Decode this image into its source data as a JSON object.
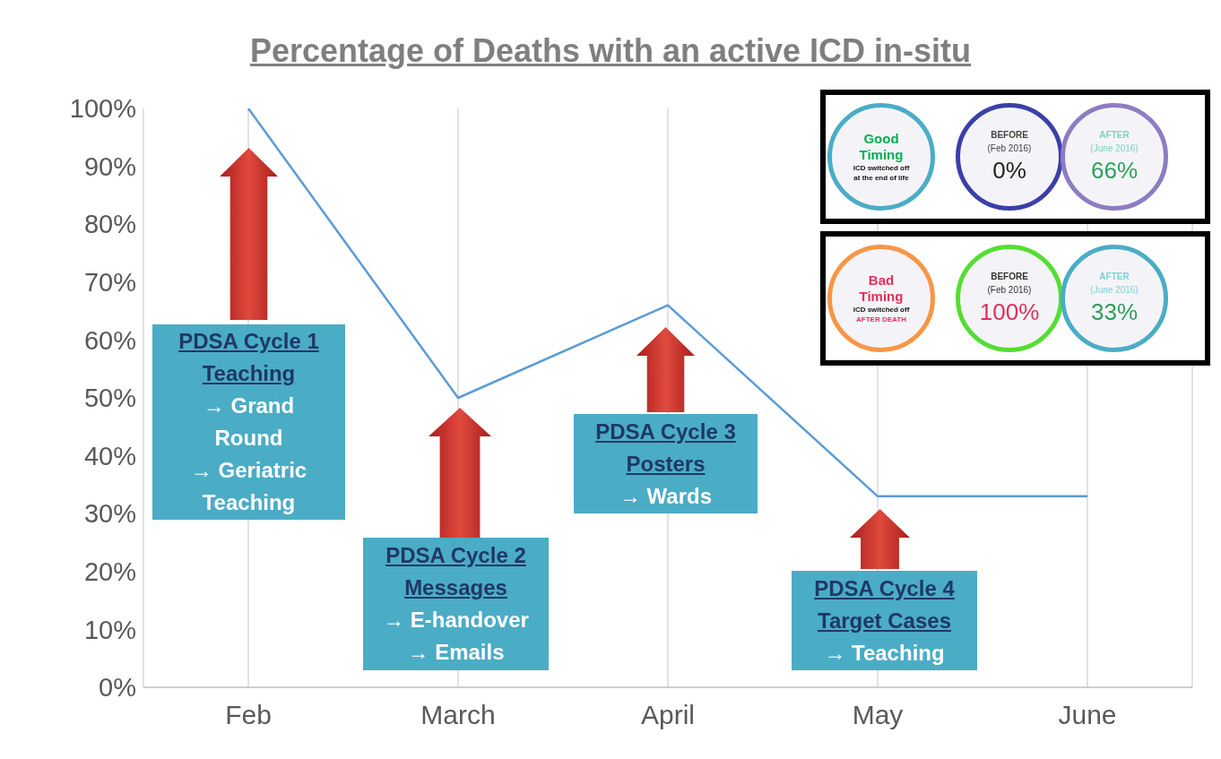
{
  "chart_data": {
    "type": "line",
    "title": "Percentage of Deaths with an active ICD in-situ",
    "categories": [
      "Feb",
      "March",
      "April",
      "May",
      "June"
    ],
    "series": [
      {
        "color": "#5b9bd5",
        "values": [
          100,
          50,
          66,
          33,
          33
        ]
      }
    ],
    "ylim": [
      0,
      100
    ],
    "yticks": [
      {
        "value": 0,
        "label": "0%"
      },
      {
        "value": 10,
        "label": "10%"
      },
      {
        "value": 20,
        "label": "20%"
      },
      {
        "value": 30,
        "label": "30%"
      },
      {
        "value": 40,
        "label": "40%"
      },
      {
        "value": 50,
        "label": "50%"
      },
      {
        "value": 60,
        "label": "60%"
      },
      {
        "value": 70,
        "label": "70%"
      },
      {
        "value": 80,
        "label": "80%"
      },
      {
        "value": 90,
        "label": "90%"
      },
      {
        "value": 100,
        "label": "100%"
      }
    ],
    "grid": "x",
    "marker": "none",
    "line_style": "solid",
    "annotations": [
      "PDSA Cycle 1\nTeaching\n→ Grand\nRound\n→ Geriatric\nTeaching",
      "PDSA Cycle 2\nMessages\n→ E-handover\n→ Emails",
      "PDSA Cycle 3\nPosters\n→ Wards",
      "PDSA Cycle 4\nTarget Cases\n→ Teaching",
      "Good\nTiming\nICD switched off\nat the end of life",
      "BEFORE\n(Feb 2016)\n0%",
      "AFTER\n(June 2016)\n66%",
      "Bad\nTiming\nICD switched off\nAFTER DEATH",
      "BEFORE\n(Feb 2016)\n100%",
      "AFTER\n(June 2016)\n33%"
    ]
  }
}
